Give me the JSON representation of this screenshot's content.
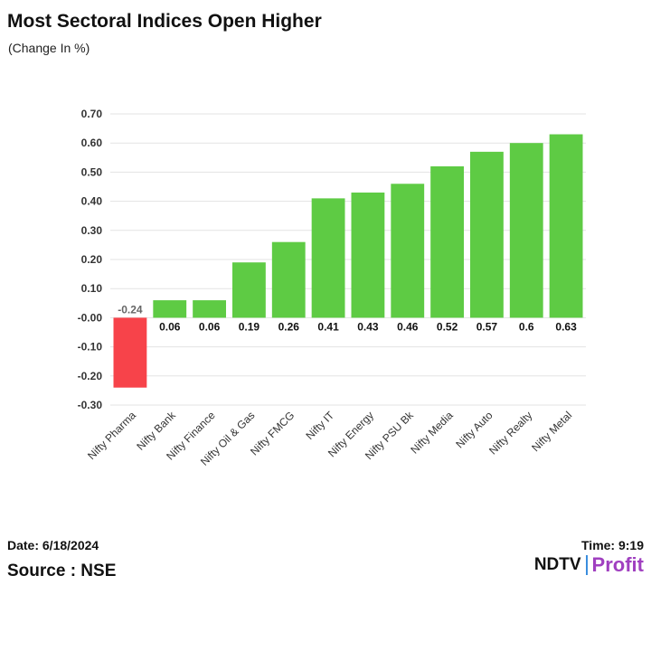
{
  "header": {
    "title": "Most Sectoral Indices Open Higher",
    "subtitle": "(Change In %)"
  },
  "footer": {
    "date": "Date: 6/18/2024",
    "time": "Time: 9:19",
    "source": "Source : NSE",
    "logo": {
      "ndtv": "NDTV",
      "profit": "Profit"
    }
  },
  "colors": {
    "positive": "#5ecb44",
    "negative": "#f7434a",
    "grid": "#e3e3e3"
  },
  "chart_data": {
    "type": "bar",
    "title": "Most Sectoral Indices Open Higher",
    "subtitle": "(Change In %)",
    "categories": [
      "Nifty Pharma",
      "Nifty Bank",
      "Nifty Finance",
      "Nifty Oil & Gas",
      "Nifty FMCG",
      "Nifty IT",
      "Nifty Energy",
      "Nifty PSU Bk",
      "Nifty Media",
      "Nifty Auto",
      "Nifty Realty",
      "Nifty Metal"
    ],
    "values": [
      -0.24,
      0.06,
      0.06,
      0.19,
      0.26,
      0.41,
      0.43,
      0.46,
      0.52,
      0.57,
      0.6,
      0.63
    ],
    "data_labels": [
      "-0.24",
      "0.06",
      "0.06",
      "0.19",
      "0.26",
      "0.41",
      "0.43",
      "0.46",
      "0.52",
      "0.57",
      "0.6",
      "0.63"
    ],
    "ylim": [
      -0.3,
      0.7
    ],
    "yticks": [
      "0.70",
      "0.60",
      "0.50",
      "0.40",
      "0.30",
      "0.20",
      "0.10",
      "-0.00",
      "-0.10",
      "-0.20",
      "-0.30"
    ],
    "ytick_values": [
      0.7,
      0.6,
      0.5,
      0.4,
      0.3,
      0.2,
      0.1,
      0.0,
      -0.1,
      -0.2,
      -0.3
    ],
    "grid": true,
    "legend": "none"
  }
}
